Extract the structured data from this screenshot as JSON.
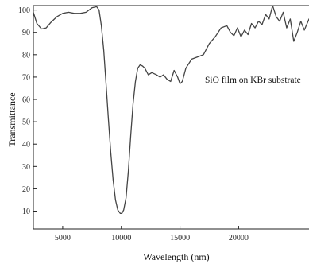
{
  "chart_data": {
    "type": "line",
    "title": "",
    "xlabel": "Wavelength (nm)",
    "ylabel": "Transmittance",
    "annotation": "SiO film on KBr substrate",
    "xlim": [
      2500,
      26000
    ],
    "ylim": [
      2,
      102
    ],
    "xticks": [
      5000,
      10000,
      15000,
      20000
    ],
    "yticks": [
      10,
      20,
      30,
      40,
      50,
      60,
      70,
      80,
      90,
      100
    ],
    "grid": false,
    "legend": "none",
    "line_color": "#444444",
    "series": [
      {
        "x": [
          2500,
          2800,
          3200,
          3600,
          4000,
          4500,
          5000,
          5500,
          6000,
          6500,
          7000,
          7500,
          7900,
          8100,
          8300,
          8500,
          8700,
          8900,
          9100,
          9300,
          9500,
          9700,
          9900,
          10050,
          10200,
          10400,
          10600,
          10800,
          11000,
          11200,
          11400,
          11600,
          11800,
          12000,
          12300,
          12600,
          13000,
          13300,
          13600,
          13900,
          14200,
          14500,
          14800,
          15000,
          15200,
          15500,
          16000,
          16500,
          17000,
          17500,
          18000,
          18500,
          19000,
          19300,
          19600,
          19900,
          20200,
          20500,
          20800,
          21100,
          21400,
          21700,
          22000,
          22300,
          22600,
          22900,
          23200,
          23500,
          23800,
          24100,
          24400,
          24700,
          25000,
          25300,
          25600,
          26000
        ],
        "y": [
          99,
          94,
          91.5,
          92,
          94.5,
          97,
          98.5,
          99,
          98.5,
          98.5,
          99,
          101,
          101.5,
          100,
          93,
          82,
          67,
          51,
          36,
          24,
          15,
          10.5,
          9,
          9,
          10.5,
          16,
          28,
          44,
          58,
          68,
          74,
          75.5,
          75,
          74,
          71,
          72,
          71,
          70,
          71,
          69,
          68,
          73,
          70,
          67,
          68,
          74,
          78,
          79,
          80,
          85,
          88,
          92,
          93,
          90,
          88.5,
          92,
          88,
          91,
          89,
          94,
          92,
          95,
          93.5,
          98,
          96,
          102,
          97,
          95,
          99,
          92,
          96,
          86,
          90,
          95,
          91,
          96
        ]
      }
    ]
  }
}
